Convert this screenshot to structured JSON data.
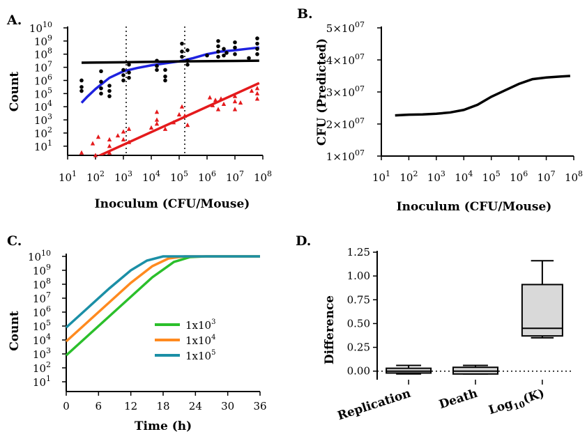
{
  "chart_data": [
    {
      "panel": "A.",
      "type": "scatter",
      "xlabel": "Inoculum (CFU/Mouse)",
      "ylabel": "Count",
      "x_scale": "log10",
      "y_scale": "log10",
      "xlim": [
        10,
        100000000
      ],
      "ylim": [
        1,
        10000000000
      ],
      "x_ticks": [
        {
          "e": 1,
          "label": "10",
          "sup": "1"
        },
        {
          "e": 2,
          "label": "10",
          "sup": "2"
        },
        {
          "e": 3,
          "label": "10",
          "sup": "3"
        },
        {
          "e": 4,
          "label": "10",
          "sup": "4"
        },
        {
          "e": 5,
          "label": "10",
          "sup": "5"
        },
        {
          "e": 6,
          "label": "10",
          "sup": "6"
        },
        {
          "e": 7,
          "label": "10",
          "sup": "7"
        },
        {
          "e": 8,
          "label": "10",
          "sup": "8"
        }
      ],
      "y_ticks": [
        {
          "e": 1,
          "label": "10",
          "sup": "1"
        },
        {
          "e": 2,
          "label": "10",
          "sup": "2"
        },
        {
          "e": 3,
          "label": "10",
          "sup": "3"
        },
        {
          "e": 4,
          "label": "10",
          "sup": "4"
        },
        {
          "e": 5,
          "label": "10",
          "sup": "5"
        },
        {
          "e": 6,
          "label": "10",
          "sup": "6"
        },
        {
          "e": 7,
          "label": "10",
          "sup": "7"
        },
        {
          "e": 8,
          "label": "10",
          "sup": "8"
        },
        {
          "e": 9,
          "label": "10",
          "sup": "9"
        },
        {
          "e": 10,
          "label": "10",
          "sup": "10"
        }
      ],
      "vertical_reference_lines_log10": [
        3.1,
        5.2
      ],
      "fit_lines": [
        {
          "color": "#1e22e0",
          "points_log10": [
            [
              1.5,
              4.3
            ],
            [
              1.7,
              4.75
            ],
            [
              2.0,
              5.35
            ],
            [
              2.5,
              6.2
            ],
            [
              3.0,
              6.7
            ],
            [
              3.5,
              6.95
            ],
            [
              4.0,
              7.15
            ],
            [
              4.5,
              7.3
            ],
            [
              5.0,
              7.45
            ],
            [
              5.5,
              7.7
            ],
            [
              6.0,
              8.0
            ],
            [
              6.5,
              8.2
            ],
            [
              7.0,
              8.3
            ],
            [
              7.5,
              8.42
            ],
            [
              7.87,
              8.5
            ]
          ]
        },
        {
          "color": "#000000",
          "points_log10": [
            [
              1.5,
              7.35
            ],
            [
              3.0,
              7.38
            ],
            [
              5.0,
              7.45
            ],
            [
              7.0,
              7.48
            ],
            [
              7.87,
              7.5
            ]
          ]
        },
        {
          "color": "#e41a1c",
          "points_log10": [
            [
              1.85,
              0.0
            ],
            [
              7.87,
              5.8
            ]
          ]
        }
      ],
      "series": [
        {
          "marker": "circle",
          "color": "#000000",
          "points_log10": [
            [
              1.5,
              6.0
            ],
            [
              1.5,
              5.5
            ],
            [
              1.5,
              5.2
            ],
            [
              2.2,
              6.7
            ],
            [
              2.2,
              5.9
            ],
            [
              2.2,
              5.4
            ],
            [
              2.2,
              5.0
            ],
            [
              2.5,
              5.6
            ],
            [
              2.5,
              5.2
            ],
            [
              2.5,
              4.8
            ],
            [
              3.0,
              6.8
            ],
            [
              3.0,
              6.4
            ],
            [
              3.0,
              6.0
            ],
            [
              3.2,
              7.2
            ],
            [
              3.2,
              6.6
            ],
            [
              3.2,
              6.2
            ],
            [
              4.2,
              7.1
            ],
            [
              4.2,
              6.8
            ],
            [
              4.2,
              7.5
            ],
            [
              4.5,
              6.8
            ],
            [
              4.5,
              6.3
            ],
            [
              4.5,
              6.0
            ],
            [
              5.1,
              8.8
            ],
            [
              5.1,
              8.2
            ],
            [
              5.1,
              7.8
            ],
            [
              5.3,
              7.5
            ],
            [
              5.3,
              7.2
            ],
            [
              5.3,
              8.3
            ],
            [
              6.4,
              9.0
            ],
            [
              6.4,
              8.6
            ],
            [
              6.4,
              8.2
            ],
            [
              6.4,
              7.8
            ],
            [
              6.6,
              8.4
            ],
            [
              6.6,
              7.9
            ],
            [
              7.0,
              8.9
            ],
            [
              7.0,
              8.5
            ],
            [
              7.0,
              8.0
            ],
            [
              7.8,
              9.2
            ],
            [
              7.8,
              8.8
            ],
            [
              7.8,
              8.4
            ],
            [
              7.8,
              8.0
            ],
            [
              7.5,
              7.7
            ],
            [
              6.7,
              8.1
            ],
            [
              6.0,
              7.9
            ]
          ]
        },
        {
          "marker": "triangle",
          "color": "#e41a1c",
          "points_log10": [
            [
              1.5,
              0.5
            ],
            [
              1.9,
              1.2
            ],
            [
              2.0,
              0.3
            ],
            [
              2.1,
              1.7
            ],
            [
              2.5,
              0.5
            ],
            [
              2.5,
              1.0
            ],
            [
              2.5,
              1.5
            ],
            [
              2.8,
              1.8
            ],
            [
              3.0,
              2.1
            ],
            [
              3.0,
              1.5
            ],
            [
              3.2,
              2.3
            ],
            [
              3.2,
              1.3
            ],
            [
              4.0,
              2.4
            ],
            [
              4.2,
              3.0
            ],
            [
              4.2,
              3.6
            ],
            [
              4.2,
              2.7
            ],
            [
              4.5,
              2.3
            ],
            [
              4.8,
              2.8
            ],
            [
              5.0,
              3.4
            ],
            [
              5.1,
              4.0
            ],
            [
              5.2,
              3.3
            ],
            [
              5.3,
              2.6
            ],
            [
              6.2,
              4.1
            ],
            [
              6.3,
              4.5
            ],
            [
              6.4,
              3.8
            ],
            [
              6.5,
              4.6
            ],
            [
              7.0,
              4.8
            ],
            [
              7.0,
              4.4
            ],
            [
              7.0,
              3.8
            ],
            [
              7.2,
              4.3
            ],
            [
              7.8,
              5.4
            ],
            [
              7.8,
              5.0
            ],
            [
              7.8,
              4.6
            ],
            [
              7.6,
              5.2
            ],
            [
              6.6,
              4.2
            ],
            [
              6.1,
              4.7
            ]
          ]
        }
      ]
    },
    {
      "panel": "B.",
      "type": "line",
      "xlabel": "Inoculum  (CFU/Mouse)",
      "ylabel": "CFU (Predicted)",
      "x_scale": "log10",
      "xlim": [
        10,
        100000000
      ],
      "ylim": [
        10000000,
        50000000
      ],
      "x_ticks": [
        {
          "e": 1,
          "label": "10",
          "sup": "1"
        },
        {
          "e": 2,
          "label": "10",
          "sup": "2"
        },
        {
          "e": 3,
          "label": "10",
          "sup": "3"
        },
        {
          "e": 4,
          "label": "10",
          "sup": "4"
        },
        {
          "e": 5,
          "label": "10",
          "sup": "5"
        },
        {
          "e": 6,
          "label": "10",
          "sup": "6"
        },
        {
          "e": 7,
          "label": "10",
          "sup": "7"
        },
        {
          "e": 8,
          "label": "10",
          "sup": "8"
        }
      ],
      "y_ticks": [
        {
          "v": 10000000,
          "label": "1×10",
          "sup": "07"
        },
        {
          "v": 20000000,
          "label": "2×10",
          "sup": "07"
        },
        {
          "v": 30000000,
          "label": "3×10",
          "sup": "07"
        },
        {
          "v": 40000000,
          "label": "4×10",
          "sup": "07"
        },
        {
          "v": 50000000,
          "label": "5×10",
          "sup": "07"
        }
      ],
      "series": [
        {
          "color": "#000000",
          "x_log10": [
            1.5,
            2.0,
            2.5,
            3.0,
            3.5,
            4.0,
            4.5,
            5.0,
            5.5,
            6.0,
            6.5,
            7.0,
            7.5,
            7.87
          ],
          "values": [
            22700000,
            22900000,
            23000000,
            23200000,
            23600000,
            24400000,
            26000000,
            28500000,
            30500000,
            32500000,
            34000000,
            34500000,
            34800000,
            35000000
          ]
        }
      ]
    },
    {
      "panel": "C.",
      "type": "line",
      "xlabel": "Time (h)",
      "ylabel": "Count",
      "y_scale": "log10",
      "xlim": [
        0,
        36
      ],
      "ylim": [
        1,
        10000000000
      ],
      "x_ticks": [
        {
          "v": 0,
          "label": "0"
        },
        {
          "v": 6,
          "label": "6"
        },
        {
          "v": 12,
          "label": "12"
        },
        {
          "v": 18,
          "label": "18"
        },
        {
          "v": 24,
          "label": "24"
        },
        {
          "v": 30,
          "label": "30"
        },
        {
          "v": 36,
          "label": "36"
        }
      ],
      "y_ticks": [
        {
          "e": 1,
          "label": "10",
          "sup": "1"
        },
        {
          "e": 2,
          "label": "10",
          "sup": "2"
        },
        {
          "e": 3,
          "label": "10",
          "sup": "3"
        },
        {
          "e": 4,
          "label": "10",
          "sup": "4"
        },
        {
          "e": 5,
          "label": "10",
          "sup": "5"
        },
        {
          "e": 6,
          "label": "10",
          "sup": "6"
        },
        {
          "e": 7,
          "label": "10",
          "sup": "7"
        },
        {
          "e": 8,
          "label": "10",
          "sup": "8"
        },
        {
          "e": 9,
          "label": "10",
          "sup": "9"
        },
        {
          "e": 10,
          "label": "10",
          "sup": "10"
        }
      ],
      "series": [
        {
          "name": "1x10",
          "name_sup": "3",
          "color": "#2bbf2b",
          "points_log10": [
            [
              0,
              2.9
            ],
            [
              4,
              4.3
            ],
            [
              8,
              5.7
            ],
            [
              12,
              7.1
            ],
            [
              16,
              8.5
            ],
            [
              20,
              9.6
            ],
            [
              23,
              9.95
            ],
            [
              26,
              10.0
            ],
            [
              36,
              10.0
            ]
          ]
        },
        {
          "name": "1x10",
          "name_sup": "4",
          "color": "#ff8a1f",
          "points_log10": [
            [
              0,
              3.9
            ],
            [
              4,
              5.3
            ],
            [
              8,
              6.7
            ],
            [
              12,
              8.1
            ],
            [
              16,
              9.3
            ],
            [
              19,
              9.85
            ],
            [
              22,
              10.0
            ],
            [
              36,
              10.0
            ]
          ]
        },
        {
          "name": "1x10",
          "name_sup": "5",
          "color": "#1b8fa6",
          "points_log10": [
            [
              0,
              4.9
            ],
            [
              4,
              6.3
            ],
            [
              8,
              7.7
            ],
            [
              12,
              9.0
            ],
            [
              15,
              9.7
            ],
            [
              18,
              10.0
            ],
            [
              36,
              10.0
            ]
          ]
        }
      ]
    },
    {
      "panel": "D.",
      "type": "box",
      "ylabel": "Difference",
      "ylim": [
        0,
        1.25
      ],
      "y_ticks": [
        {
          "v": 0.0,
          "label": "0.00"
        },
        {
          "v": 0.25,
          "label": "0.25"
        },
        {
          "v": 0.5,
          "label": "0.50"
        },
        {
          "v": 0.75,
          "label": "0.75"
        },
        {
          "v": 1.0,
          "label": "1.00"
        },
        {
          "v": 1.25,
          "label": "1.25"
        }
      ],
      "reference_line": 0.0,
      "categories": [
        "Replication",
        "Death",
        "Log10(K)"
      ],
      "category_labels": [
        {
          "main": "Replication",
          "sub": ""
        },
        {
          "main": "Death",
          "sub": ""
        },
        {
          "prefix": "Log",
          "sub": "10",
          "suffix": "(K)"
        }
      ],
      "boxes": [
        {
          "min": -0.03,
          "q1": -0.02,
          "median": 0.0,
          "q3": 0.03,
          "max": 0.06
        },
        {
          "min": -0.03,
          "q1": -0.03,
          "median": 0.0,
          "q3": 0.04,
          "max": 0.06
        },
        {
          "min": 0.35,
          "q1": 0.37,
          "median": 0.45,
          "q3": 0.91,
          "max": 1.16
        }
      ]
    }
  ]
}
